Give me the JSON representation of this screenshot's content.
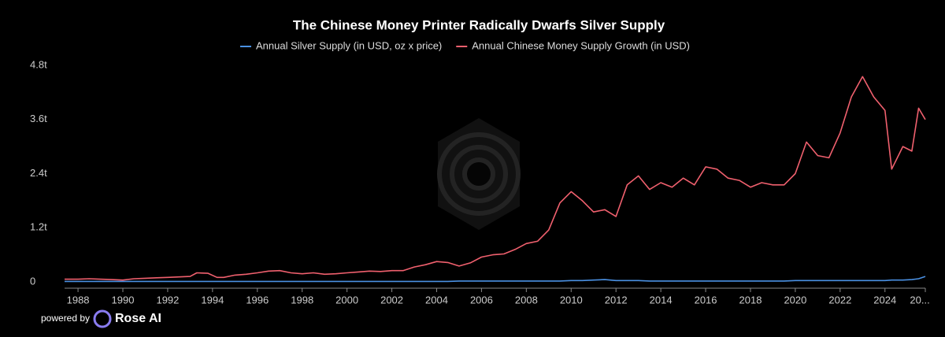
{
  "chart_data": {
    "type": "line",
    "title": "The Chinese Money Printer Radically Dwarfs Silver Supply",
    "x": [
      1987.4,
      1988,
      1988.5,
      1989,
      1989.5,
      1990,
      1990.5,
      1991,
      1991.5,
      1992,
      1992.5,
      1993,
      1993.3,
      1993.8,
      1994.2,
      1994.5,
      1995,
      1995.5,
      1996,
      1996.5,
      1997,
      1997.5,
      1998,
      1998.5,
      1999,
      1999.5,
      2000,
      2000.5,
      2001,
      2001.5,
      2002,
      2002.5,
      2003,
      2003.5,
      2004,
      2004.5,
      2005,
      2005.5,
      2006,
      2006.5,
      2007,
      2007.5,
      2008,
      2008.5,
      2009,
      2009.5,
      2010,
      2010.5,
      2011,
      2011.5,
      2012,
      2012.5,
      2013,
      2013.5,
      2014,
      2014.5,
      2015,
      2015.5,
      2016,
      2016.5,
      2017,
      2017.5,
      2018,
      2018.5,
      2019,
      2019.5,
      2020,
      2020.5,
      2021,
      2021.5,
      2022,
      2022.5,
      2023,
      2023.5,
      2024,
      2024.3,
      2024.8,
      2025.2,
      2025.5,
      2025.8
    ],
    "series": [
      {
        "name": "Annual Silver Supply (in USD, oz x price)",
        "color": "#4a90e2",
        "values": [
          0.01,
          0.01,
          0.01,
          0.01,
          0.01,
          0.01,
          0.01,
          0.01,
          0.01,
          0.01,
          0.01,
          0.01,
          0.01,
          0.01,
          0.01,
          0.01,
          0.01,
          0.01,
          0.01,
          0.01,
          0.01,
          0.01,
          0.01,
          0.01,
          0.01,
          0.01,
          0.01,
          0.01,
          0.01,
          0.01,
          0.01,
          0.01,
          0.01,
          0.01,
          0.01,
          0.01,
          0.02,
          0.02,
          0.02,
          0.02,
          0.02,
          0.02,
          0.02,
          0.02,
          0.02,
          0.02,
          0.03,
          0.03,
          0.04,
          0.05,
          0.03,
          0.03,
          0.03,
          0.02,
          0.02,
          0.02,
          0.02,
          0.02,
          0.02,
          0.02,
          0.02,
          0.02,
          0.02,
          0.02,
          0.02,
          0.02,
          0.03,
          0.03,
          0.03,
          0.03,
          0.03,
          0.03,
          0.03,
          0.03,
          0.03,
          0.04,
          0.04,
          0.05,
          0.07,
          0.12
        ]
      },
      {
        "name": "Annual Chinese Money Supply Growth (in USD)",
        "color": "#f0606e",
        "values": [
          0.06,
          0.06,
          0.07,
          0.06,
          0.05,
          0.04,
          0.07,
          0.08,
          0.09,
          0.1,
          0.11,
          0.12,
          0.2,
          0.19,
          0.1,
          0.1,
          0.15,
          0.17,
          0.2,
          0.24,
          0.25,
          0.2,
          0.18,
          0.2,
          0.17,
          0.18,
          0.2,
          0.22,
          0.24,
          0.23,
          0.25,
          0.25,
          0.33,
          0.38,
          0.45,
          0.43,
          0.35,
          0.42,
          0.55,
          0.6,
          0.62,
          0.72,
          0.85,
          0.9,
          1.15,
          1.75,
          2.0,
          1.8,
          1.55,
          1.6,
          1.45,
          2.15,
          2.35,
          2.05,
          2.2,
          2.1,
          2.3,
          2.15,
          2.55,
          2.5,
          2.3,
          2.25,
          2.1,
          2.2,
          2.15,
          2.15,
          2.4,
          3.1,
          2.8,
          2.75,
          3.3,
          4.1,
          4.55,
          4.1,
          3.8,
          2.5,
          3.0,
          2.9,
          3.85,
          3.6
        ]
      }
    ],
    "xlim": [
      1987.4,
      2025.8
    ],
    "xticks": [
      1988,
      1990,
      1992,
      1994,
      1996,
      1998,
      2000,
      2002,
      2004,
      2006,
      2008,
      2010,
      2012,
      2014,
      2016,
      2018,
      2020,
      2022,
      2024,
      {
        "value": 2026,
        "label": "20..."
      }
    ],
    "ylim": [
      0,
      4.8
    ],
    "yticks": [
      0,
      {
        "value": 1.2,
        "label": "1.2t"
      },
      {
        "value": 2.4,
        "label": "2.4t"
      },
      {
        "value": 3.6,
        "label": "3.6t"
      },
      {
        "value": 4.8,
        "label": "4.8t"
      }
    ],
    "grid": false
  },
  "branding": {
    "prefix": "powered by",
    "name": "Rose AI"
  }
}
